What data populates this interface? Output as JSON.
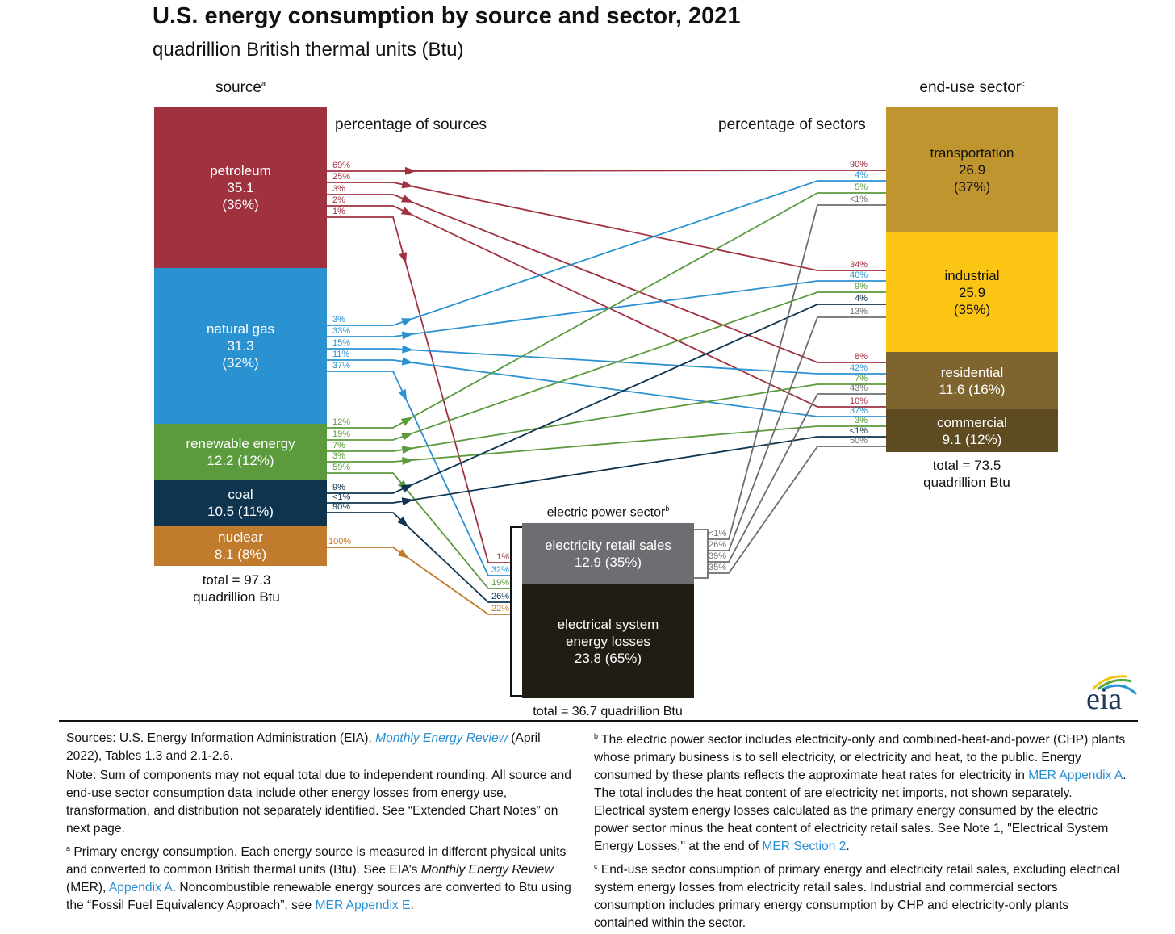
{
  "title": "U.S. energy consumption by source and sector, 2021",
  "subtitle": "quadrillion British thermal units (Btu)",
  "source_header": {
    "label": "source",
    "sup": "a"
  },
  "sector_header": {
    "label": "end-use sector",
    "sup": "c"
  },
  "pct_sources_label": "percentage of sources",
  "pct_sectors_label": "percentage of sectors",
  "colors": {
    "petroleum": "#a0313f",
    "natural_gas": "#2b92d2",
    "renewable": "#5b9a3d",
    "coal": "#0e3450",
    "nuclear": "#c07b2c",
    "transportation": "#bf952f",
    "industrial": "#fcc513",
    "residential": "#7e642f",
    "commercial": "#5e4b22",
    "retail": "#6d6e71",
    "losses": "#221d14"
  },
  "sources": [
    {
      "key": "petroleum",
      "name": "petroleum",
      "value": "35.1",
      "pct": "(36%)"
    },
    {
      "key": "natural_gas",
      "name": "natural gas",
      "value": "31.3",
      "pct": "(32%)"
    },
    {
      "key": "renewable",
      "name": "renewable energy",
      "value": "12.2 (12%)"
    },
    {
      "key": "coal",
      "name": "coal",
      "value": "10.5 (11%)"
    },
    {
      "key": "nuclear",
      "name": "nuclear",
      "value": "8.1 (8%)"
    }
  ],
  "source_total": {
    "line1": "total = 97.3",
    "line2": "quadrillion Btu"
  },
  "sectors": [
    {
      "key": "transportation",
      "name": "transportation",
      "value": "26.9",
      "pct": "(37%)"
    },
    {
      "key": "industrial",
      "name": "industrial",
      "value": "25.9",
      "pct": "(35%)"
    },
    {
      "key": "residential",
      "name": "residential",
      "value": "11.6 (16%)"
    },
    {
      "key": "commercial",
      "name": "commercial",
      "value": "9.1 (12%)"
    }
  ],
  "sector_total": {
    "line1": "total = 73.5",
    "line2": "quadrillion Btu"
  },
  "electric": {
    "header": "electric power sector",
    "sup": "b",
    "retail": {
      "name": "electricity retail sales",
      "value": "12.9 (35%)"
    },
    "losses": {
      "line1": "electrical system",
      "line2": "energy losses",
      "value": "23.8 (65%)"
    },
    "total": "total = 36.7 quadrillion Btu"
  },
  "flows": [
    {
      "from": "petroleum",
      "src_pct": "69%",
      "to": "transportation",
      "dst_pct": "90%"
    },
    {
      "from": "petroleum",
      "src_pct": "25%",
      "to": "industrial",
      "dst_pct": "34%"
    },
    {
      "from": "petroleum",
      "src_pct": "3%",
      "to": "residential",
      "dst_pct": "8%"
    },
    {
      "from": "petroleum",
      "src_pct": "2%",
      "to": "commercial",
      "dst_pct": "10%"
    },
    {
      "from": "petroleum",
      "src_pct": "1%",
      "to": "electric",
      "dst_pct": "1%"
    },
    {
      "from": "natural_gas",
      "src_pct": "3%",
      "to": "transportation",
      "dst_pct": "4%"
    },
    {
      "from": "natural_gas",
      "src_pct": "33%",
      "to": "industrial",
      "dst_pct": "40%"
    },
    {
      "from": "natural_gas",
      "src_pct": "15%",
      "to": "residential",
      "dst_pct": "42%"
    },
    {
      "from": "natural_gas",
      "src_pct": "11%",
      "to": "commercial",
      "dst_pct": "37%"
    },
    {
      "from": "natural_gas",
      "src_pct": "37%",
      "to": "electric",
      "dst_pct": "32%"
    },
    {
      "from": "renewable",
      "src_pct": "12%",
      "to": "transportation",
      "dst_pct": "5%"
    },
    {
      "from": "renewable",
      "src_pct": "19%",
      "to": "industrial",
      "dst_pct": "9%"
    },
    {
      "from": "renewable",
      "src_pct": "7%",
      "to": "residential",
      "dst_pct": "7%"
    },
    {
      "from": "renewable",
      "src_pct": "3%",
      "to": "commercial",
      "dst_pct": "3%"
    },
    {
      "from": "renewable",
      "src_pct": "59%",
      "to": "electric",
      "dst_pct": "19%"
    },
    {
      "from": "coal",
      "src_pct": "9%",
      "to": "industrial",
      "dst_pct": "4%"
    },
    {
      "from": "coal",
      "src_pct": "<1%",
      "to": "commercial",
      "dst_pct": "<1%"
    },
    {
      "from": "coal",
      "src_pct": "90%",
      "to": "electric",
      "dst_pct": "26%"
    },
    {
      "from": "nuclear",
      "src_pct": "100%",
      "to": "electric",
      "dst_pct": "22%"
    },
    {
      "from": "retail",
      "src_pct": "<1%",
      "to": "transportation",
      "dst_pct": "<1%"
    },
    {
      "from": "retail",
      "src_pct": "26%",
      "to": "industrial",
      "dst_pct": "13%"
    },
    {
      "from": "retail",
      "src_pct": "39%",
      "to": "residential",
      "dst_pct": "43%"
    },
    {
      "from": "retail",
      "src_pct": "35%",
      "to": "commercial",
      "dst_pct": "50%"
    }
  ],
  "footer": {
    "left": [
      [
        {
          "t": "Sources: U.S. Energy Information Administration (EIA), "
        },
        {
          "t": "Monthly Energy Review",
          "c": "lnk it"
        },
        {
          "t": " (April 2022), Tables 1.3 and 2.1-2.6."
        }
      ],
      [
        {
          "t": "Note: Sum of components may not equal total due to independent rounding. All source and end-use sector consumption data include other energy losses from energy use, transformation, and distribution not separately identified. See “Extended Chart Notes” on next page."
        }
      ],
      [
        {
          "t": "a",
          "c": "sup"
        },
        {
          "t": " Primary energy consumption. Each energy source is measured in different physical units and converted to common British thermal units (Btu). See EIA’s "
        },
        {
          "t": "Monthly Energy Review",
          "c": "it"
        },
        {
          "t": " (MER), "
        },
        {
          "t": "Appendix A",
          "c": "lnk"
        },
        {
          "t": ". Noncombustible renewable energy sources are converted to Btu using the “Fossil Fuel Equivalency Approach”, see "
        },
        {
          "t": "MER Appendix E",
          "c": "lnk"
        },
        {
          "t": "."
        }
      ]
    ],
    "right": [
      [
        {
          "t": "b",
          "c": "sup"
        },
        {
          "t": " The electric power sector includes electricity-only and combined-heat-and-power (CHP) plants whose primary business is to sell electricity, or electricity and heat, to the public. Energy consumed by these plants reflects the approximate heat rates for electricity in "
        },
        {
          "t": "MER Appendix A",
          "c": "lnk"
        },
        {
          "t": ". The total includes the heat content of are electricity net imports, not shown separately. Electrical system energy losses calculated as the primary energy consumed by the electric power sector minus the heat content of electricity retail sales. See Note 1, \"Electrical System Energy Losses,\" at the end of "
        },
        {
          "t": "MER Section 2",
          "c": "lnk"
        },
        {
          "t": "."
        }
      ],
      [
        {
          "t": "c",
          "c": "sup"
        },
        {
          "t": " End-use sector consumption of primary energy and electricity retail sales, excluding electrical system energy losses from electricity retail sales. Industrial and commercial sectors consumption includes primary energy consumption by CHP and electricity-only plants contained within the sector."
        }
      ]
    ]
  },
  "logo_text": "eia"
}
